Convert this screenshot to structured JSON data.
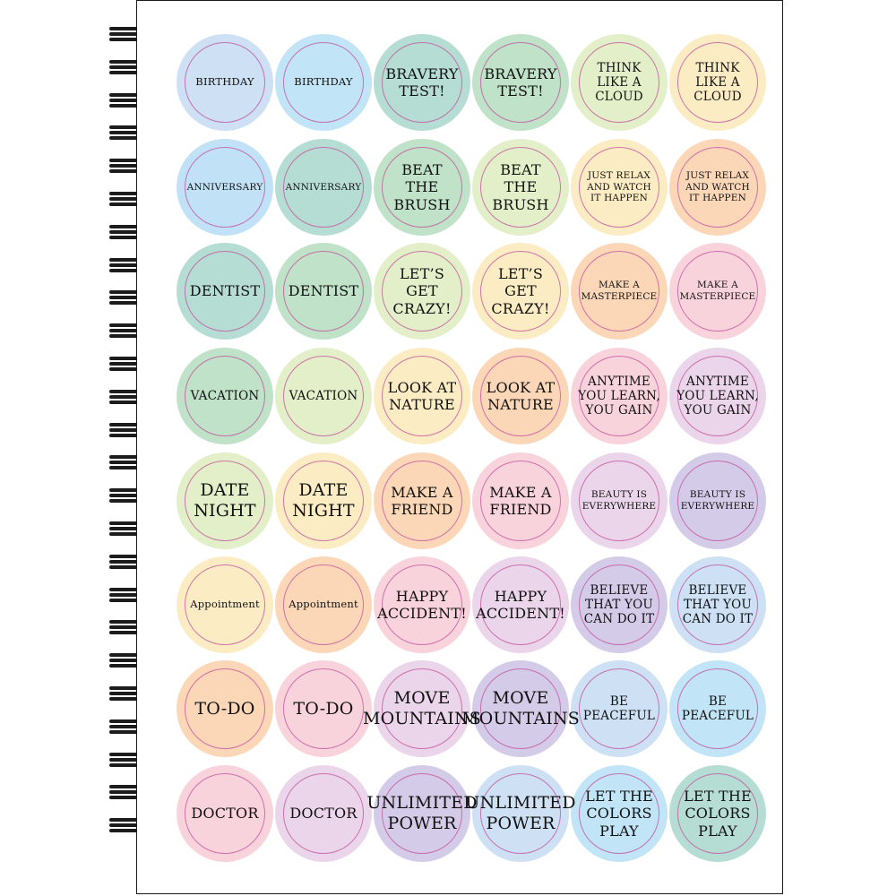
{
  "colors": {
    "pageBorder": "#1a1a1a",
    "ringLine": "#c24e9c",
    "text": "#111111"
  },
  "stickers": [
    {
      "text": "BIRTHDAY",
      "color": "#cde0f4",
      "size": "s-xs"
    },
    {
      "text": "BIRTHDAY",
      "color": "#c1e4f6",
      "size": "s-xs"
    },
    {
      "text": "BRAVERY\nTEST!",
      "color": "#b6ddd4",
      "size": "s-l"
    },
    {
      "text": "BRAVERY\nTEST!",
      "color": "#bfe2c8",
      "size": "s-l"
    },
    {
      "text": "THINK\nLIKE A\nCLOUD",
      "color": "#e3efc8",
      "size": "s-m"
    },
    {
      "text": "THINK\nLIKE A\nCLOUD",
      "color": "#fcecc4",
      "size": "s-m"
    },
    {
      "text": "ANNIVERSARY",
      "color": "#c1e2f6",
      "size": "s-s"
    },
    {
      "text": "ANNIVERSARY",
      "color": "#b6ddd4",
      "size": "s-s"
    },
    {
      "text": "BEAT\nTHE\nBRUSH",
      "color": "#bfe2c8",
      "size": "s-l"
    },
    {
      "text": "BEAT\nTHE\nBRUSH",
      "color": "#e3efc8",
      "size": "s-l"
    },
    {
      "text": "JUST RELAX\nAND WATCH\nIT HAPPEN",
      "color": "#fcecc4",
      "size": "s-s"
    },
    {
      "text": "JUST RELAX\nAND WATCH\nIT HAPPEN",
      "color": "#fbd7b8",
      "size": "s-s"
    },
    {
      "text": "DENTIST",
      "color": "#b6ddd4",
      "size": "s-l"
    },
    {
      "text": "DENTIST",
      "color": "#bfe2c8",
      "size": "s-l"
    },
    {
      "text": "LET’S\nGET\nCRAZY!",
      "color": "#e3efc8",
      "size": "s-l"
    },
    {
      "text": "LET’S\nGET\nCRAZY!",
      "color": "#fcecc4",
      "size": "s-l"
    },
    {
      "text": "MAKE A\nMASTERPIECE",
      "color": "#fbd7b8",
      "size": "s-s"
    },
    {
      "text": "MAKE A\nMASTERPIECE",
      "color": "#f9d3dc",
      "size": "s-s"
    },
    {
      "text": "VACATION",
      "color": "#bfe2c8",
      "size": "s-m"
    },
    {
      "text": "VACATION",
      "color": "#e3efc8",
      "size": "s-m"
    },
    {
      "text": "LOOK AT\nNATURE",
      "color": "#fcecc4",
      "size": "s-l"
    },
    {
      "text": "LOOK AT\nNATURE",
      "color": "#fbd7b8",
      "size": "s-l"
    },
    {
      "text": "ANYTIME\nYOU LEARN,\nYOU GAIN",
      "color": "#f9d3dc",
      "size": "s-m"
    },
    {
      "text": "ANYTIME\nYOU LEARN,\nYOU GAIN",
      "color": "#ebd5ea",
      "size": "s-m"
    },
    {
      "text": "DATE\nNIGHT",
      "color": "#e3efc8",
      "size": "s-xl"
    },
    {
      "text": "DATE\nNIGHT",
      "color": "#fcecc4",
      "size": "s-xl"
    },
    {
      "text": "MAKE A\nFRIEND",
      "color": "#fbd7b8",
      "size": "s-l"
    },
    {
      "text": "MAKE A\nFRIEND",
      "color": "#f9d3dc",
      "size": "s-l"
    },
    {
      "text": "BEAUTY IS\nEVERYWHERE",
      "color": "#ebd5ea",
      "size": "s-s"
    },
    {
      "text": "BEAUTY IS\nEVERYWHERE",
      "color": "#d4cbe8",
      "size": "s-s"
    },
    {
      "text": "Appointment",
      "color": "#fcecc4",
      "size": "s-xs"
    },
    {
      "text": "Appointment",
      "color": "#fbd7b8",
      "size": "s-xs"
    },
    {
      "text": "HAPPY\nACCIDENT!",
      "color": "#f9d3dc",
      "size": "s-l"
    },
    {
      "text": "HAPPY\nACCIDENT!",
      "color": "#ebd5ea",
      "size": "s-l"
    },
    {
      "text": "BELIEVE\nTHAT YOU\nCAN DO IT",
      "color": "#d4cbe8",
      "size": "s-m"
    },
    {
      "text": "BELIEVE\nTHAT YOU\nCAN DO IT",
      "color": "#cde0f4",
      "size": "s-m"
    },
    {
      "text": "TO-DO",
      "color": "#fbd7b8",
      "size": "s-xl"
    },
    {
      "text": "TO-DO",
      "color": "#f9d3dc",
      "size": "s-xl"
    },
    {
      "text": "MOVE\nMOUNTAINS",
      "color": "#ebd5ea",
      "size": "s-xl"
    },
    {
      "text": "MOVE\nMOUNTAINS",
      "color": "#d4cbe8",
      "size": "s-xl"
    },
    {
      "text": "BE\nPEACEFUL",
      "color": "#cde0f4",
      "size": "s-m"
    },
    {
      "text": "BE\nPEACEFUL",
      "color": "#c1e4f6",
      "size": "s-m"
    },
    {
      "text": "DOCTOR",
      "color": "#f9d3dc",
      "size": "s-l"
    },
    {
      "text": "DOCTOR",
      "color": "#ebd5ea",
      "size": "s-l"
    },
    {
      "text": "UNLIMITED\nPOWER",
      "color": "#d4cbe8",
      "size": "s-xl"
    },
    {
      "text": "UNLIMITED\nPOWER",
      "color": "#cde0f4",
      "size": "s-xl"
    },
    {
      "text": "LET THE\nCOLORS\nPLAY",
      "color": "#c1e4f6",
      "size": "s-l"
    },
    {
      "text": "LET THE\nCOLORS\nPLAY",
      "color": "#b6ddd4",
      "size": "s-l"
    }
  ]
}
